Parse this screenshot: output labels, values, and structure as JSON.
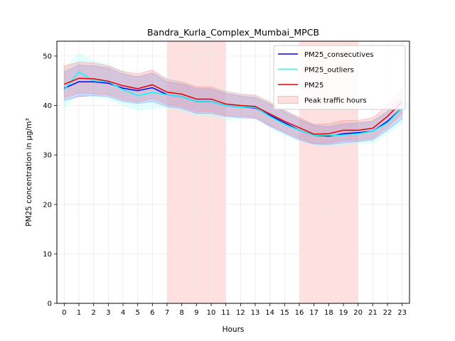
{
  "chart_data": {
    "type": "line",
    "title": "Bandra_Kurla_Complex_Mumbai_MPCB",
    "xlabel": "Hours",
    "ylabel": "PM25 concentration in µg/m³",
    "xlim": [
      -0.5,
      23.5
    ],
    "ylim": [
      0,
      53
    ],
    "x": [
      0,
      1,
      2,
      3,
      4,
      5,
      6,
      7,
      8,
      9,
      10,
      11,
      12,
      13,
      14,
      15,
      16,
      17,
      18,
      19,
      20,
      21,
      22,
      23
    ],
    "x_ticks": [
      "0",
      "1",
      "2",
      "3",
      "4",
      "5",
      "6",
      "7",
      "8",
      "9",
      "10",
      "11",
      "12",
      "13",
      "14",
      "15",
      "16",
      "17",
      "18",
      "19",
      "20",
      "21",
      "22",
      "23"
    ],
    "y_ticks": [
      0,
      10,
      20,
      30,
      40,
      50
    ],
    "grid": true,
    "legend_position": "top-right",
    "shaded_regions": [
      {
        "label": "Peak traffic hours",
        "x_start": 7,
        "x_end": 11,
        "color": "#ffe0e0"
      },
      {
        "label": "",
        "x_start": 16,
        "x_end": 20,
        "color": "#ffe0e0"
      }
    ],
    "series": [
      {
        "name": "PM25_consecutives",
        "color": "#0000ff",
        "band_color": "#6666ff",
        "values": [
          43.5,
          44.8,
          44.8,
          44.5,
          43.5,
          43.0,
          43.6,
          42.2,
          41.8,
          40.8,
          40.8,
          40.0,
          39.7,
          39.5,
          38.0,
          36.5,
          35.0,
          34.0,
          33.8,
          34.3,
          34.5,
          34.8,
          36.8,
          39.5
        ],
        "lower": [
          41.0,
          41.8,
          42.0,
          41.8,
          40.8,
          40.4,
          40.8,
          39.8,
          39.4,
          38.4,
          38.4,
          37.8,
          37.5,
          37.4,
          35.8,
          34.4,
          33.0,
          32.2,
          32.1,
          32.5,
          32.7,
          33.0,
          35.0,
          37.3
        ],
        "upper": [
          46.8,
          48.2,
          48.0,
          47.6,
          46.4,
          45.8,
          46.6,
          44.8,
          44.4,
          43.4,
          43.4,
          42.4,
          41.9,
          41.6,
          40.3,
          38.7,
          37.2,
          36.0,
          35.7,
          36.3,
          36.5,
          36.8,
          38.8,
          41.8
        ]
      },
      {
        "name": "PM25_outliers",
        "color": "#00ffff",
        "band_color": "#aaffff",
        "values": [
          43.2,
          46.8,
          45.0,
          44.8,
          43.2,
          42.0,
          42.6,
          42.2,
          41.8,
          40.8,
          40.8,
          40.0,
          39.7,
          39.6,
          37.8,
          36.2,
          35.0,
          34.0,
          34.0,
          34.0,
          34.3,
          34.8,
          36.5,
          39.5
        ],
        "lower": [
          39.5,
          42.5,
          41.8,
          41.5,
          40.0,
          39.0,
          39.5,
          39.5,
          39.0,
          38.0,
          38.0,
          37.0,
          37.5,
          37.5,
          35.6,
          34.0,
          33.0,
          32.0,
          31.8,
          32.0,
          32.3,
          32.5,
          34.3,
          36.5
        ],
        "upper": [
          47.2,
          50.6,
          49.0,
          48.2,
          46.8,
          45.6,
          46.6,
          45.6,
          44.8,
          43.6,
          43.6,
          43.0,
          42.3,
          42.0,
          40.4,
          39.0,
          37.6,
          36.2,
          36.2,
          36.4,
          36.6,
          37.0,
          38.8,
          41.8
        ]
      },
      {
        "name": "PM25",
        "color": "#e00000",
        "band_color": "#ff8888",
        "values": [
          44.3,
          45.5,
          45.4,
          44.9,
          44.0,
          43.4,
          44.2,
          42.7,
          42.3,
          41.3,
          41.3,
          40.3,
          40.0,
          39.8,
          38.3,
          36.8,
          35.5,
          34.2,
          34.3,
          35.0,
          35.0,
          35.4,
          37.8,
          40.8
        ],
        "lower": [
          41.5,
          42.5,
          42.4,
          42.2,
          41.2,
          40.7,
          41.4,
          40.2,
          39.8,
          38.8,
          38.8,
          38.0,
          37.8,
          37.6,
          36.0,
          34.6,
          33.4,
          32.3,
          32.4,
          33.0,
          33.0,
          33.4,
          35.6,
          38.4
        ],
        "upper": [
          48.0,
          48.8,
          48.6,
          48.0,
          46.9,
          46.4,
          47.2,
          45.3,
          44.8,
          43.8,
          43.8,
          42.8,
          42.3,
          42.1,
          40.7,
          39.0,
          37.6,
          36.2,
          36.3,
          37.0,
          37.0,
          37.5,
          40.0,
          43.2
        ]
      }
    ],
    "legend": [
      {
        "label": "PM25_consecutives",
        "kind": "line",
        "color": "#0000ff"
      },
      {
        "label": "PM25_outliers",
        "kind": "line",
        "color": "#00ffff"
      },
      {
        "label": "PM25",
        "kind": "line",
        "color": "#e00000"
      },
      {
        "label": "Peak traffic hours",
        "kind": "patch",
        "color": "#ffe0e0"
      }
    ]
  }
}
